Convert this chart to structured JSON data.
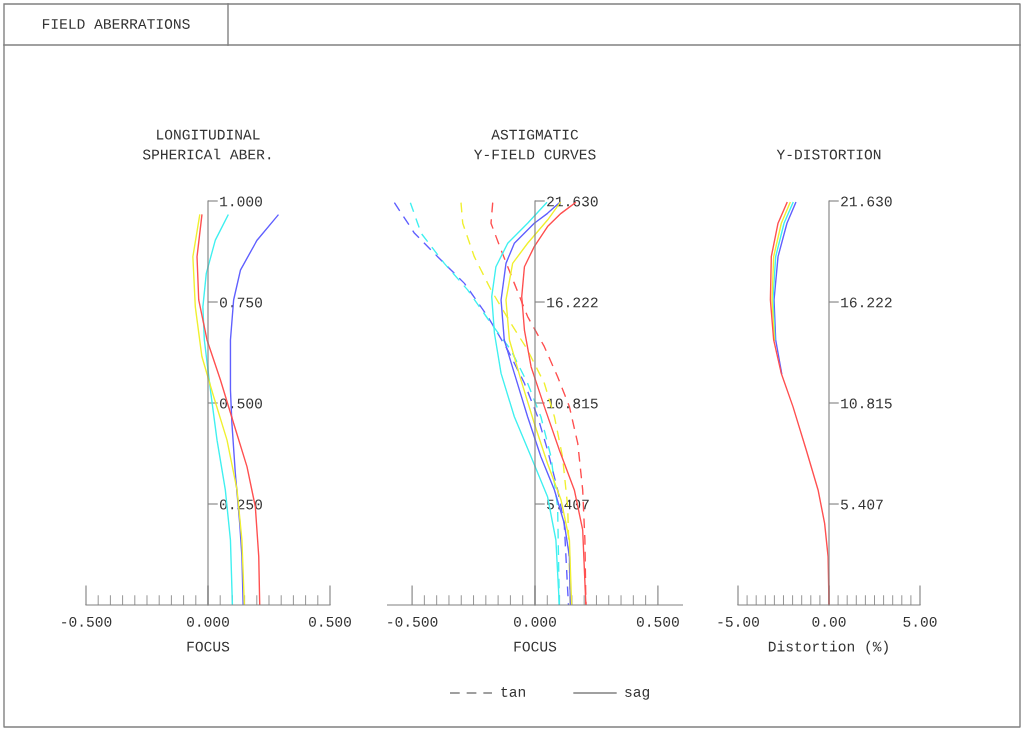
{
  "chart_data": [
    {
      "type": "line",
      "title": "LONGITUDINAL\nSPHERICAl ABER.",
      "xlabel": "FOCUS",
      "annotations": [
        "FIELD ABERRATIONS"
      ],
      "xlim": [
        -0.5,
        0.5
      ],
      "xticks": [
        {
          "value": -0.5,
          "label": "-0.500"
        },
        {
          "value": -0.45,
          "label": null
        },
        {
          "value": -0.4,
          "label": null
        },
        {
          "value": -0.35,
          "label": null
        },
        {
          "value": -0.3,
          "label": null
        },
        {
          "value": -0.25,
          "label": null
        },
        {
          "value": -0.2,
          "label": null
        },
        {
          "value": -0.15,
          "label": null
        },
        {
          "value": -0.1,
          "label": null
        },
        {
          "value": -0.05,
          "label": null
        },
        {
          "value": 0,
          "label": "0.000"
        },
        {
          "value": 0.05,
          "label": null
        },
        {
          "value": 0.1,
          "label": null
        },
        {
          "value": 0.15,
          "label": null
        },
        {
          "value": 0.2,
          "label": null
        },
        {
          "value": 0.25,
          "label": null
        },
        {
          "value": 0.3,
          "label": null
        },
        {
          "value": 0.35,
          "label": null
        },
        {
          "value": 0.4,
          "label": null
        },
        {
          "value": 0.45,
          "label": null
        },
        {
          "value": 0.5,
          "label": "0.500"
        }
      ],
      "ylim": [
        0,
        1
      ],
      "yticks": [
        {
          "value": 0.25,
          "label": "0.250"
        },
        {
          "value": 0.5,
          "label": "0.500"
        },
        {
          "value": 0.75,
          "label": "0.750"
        },
        {
          "value": 1.0,
          "label": "1.000"
        }
      ],
      "grid": false,
      "marker": "none",
      "series": [
        {
          "color": "#6060ff",
          "line_style": "solid",
          "x": [
            0.287,
            0.201,
            0.133,
            0.105,
            0.092,
            0.092,
            0.098,
            0.112,
            0.13,
            0.139,
            0.144
          ],
          "values": [
            0.965,
            0.903,
            0.829,
            0.755,
            0.656,
            0.532,
            0.45,
            0.326,
            0.202,
            0.12,
            0
          ]
        },
        {
          "color": "#40f0f0",
          "line_style": "solid",
          "x": [
            0.082,
            0.03,
            -0.007,
            -0.021,
            -0.015,
            0.01,
            0.037,
            0.071,
            0.092,
            0.1
          ],
          "values": [
            0.965,
            0.903,
            0.821,
            0.738,
            0.656,
            0.532,
            0.408,
            0.285,
            0.161,
            0
          ]
        },
        {
          "color": "#f0f030",
          "line_style": "solid",
          "x": [
            -0.034,
            -0.062,
            -0.052,
            -0.025,
            0.023,
            0.078,
            0.119,
            0.139,
            0.149
          ],
          "values": [
            0.965,
            0.862,
            0.738,
            0.615,
            0.516,
            0.408,
            0.285,
            0.161,
            0
          ]
        },
        {
          "color": "#ff5050",
          "line_style": "solid",
          "x": [
            -0.025,
            -0.045,
            -0.038,
            -0.004,
            0.051,
            0.105,
            0.16,
            0.194,
            0.208,
            0.212
          ],
          "values": [
            0.965,
            0.862,
            0.755,
            0.656,
            0.557,
            0.45,
            0.342,
            0.243,
            0.12,
            0
          ]
        }
      ]
    },
    {
      "type": "line",
      "title": "ASTIGMATIC\nY-FIELD CURVES",
      "xlabel": "FOCUS",
      "annotations": [
        "tan",
        "sag"
      ],
      "xlim": [
        -0.6,
        0.6
      ],
      "xticks": [
        {
          "value": -0.5,
          "label": "-0.500"
        },
        {
          "value": -0.45,
          "label": null
        },
        {
          "value": -0.4,
          "label": null
        },
        {
          "value": -0.35,
          "label": null
        },
        {
          "value": -0.3,
          "label": null
        },
        {
          "value": -0.25,
          "label": null
        },
        {
          "value": -0.2,
          "label": null
        },
        {
          "value": -0.15,
          "label": null
        },
        {
          "value": -0.1,
          "label": null
        },
        {
          "value": -0.05,
          "label": null
        },
        {
          "value": 0,
          "label": "0.000"
        },
        {
          "value": 0.05,
          "label": null
        },
        {
          "value": 0.1,
          "label": null
        },
        {
          "value": 0.15,
          "label": null
        },
        {
          "value": 0.2,
          "label": null
        },
        {
          "value": 0.25,
          "label": null
        },
        {
          "value": 0.3,
          "label": null
        },
        {
          "value": 0.35,
          "label": null
        },
        {
          "value": 0.4,
          "label": null
        },
        {
          "value": 0.45,
          "label": null
        },
        {
          "value": 0.5,
          "label": "0.500"
        }
      ],
      "ylim": [
        0,
        21.63
      ],
      "yticks": [
        {
          "value": 5.407,
          "label": "5.407"
        },
        {
          "value": 10.815,
          "label": "10.815"
        },
        {
          "value": 16.222,
          "label": "16.222"
        },
        {
          "value": 21.63,
          "label": "21.630"
        }
      ],
      "grid": false,
      "marker": "none",
      "series": [
        {
          "color": "#6060ff",
          "line_style": "dashed",
          "x": [
            -0.572,
            -0.49,
            -0.396,
            -0.287,
            -0.192,
            -0.111,
            -0.043,
            0.011,
            0.051,
            0.092,
            0.119,
            0.136
          ],
          "values": [
            21.54,
            19.9,
            18.65,
            17.22,
            15.44,
            13.65,
            11.87,
            10.08,
            8.3,
            6.16,
            4.37,
            0
          ]
        },
        {
          "color": "#40f0f0",
          "line_style": "dashed",
          "x": [
            -0.507,
            -0.463,
            -0.369,
            -0.274,
            -0.179,
            -0.098,
            -0.03,
            0.024,
            0.065,
            0.092,
            0.099
          ],
          "values": [
            21.54,
            19.9,
            18.29,
            16.87,
            15.08,
            13.65,
            11.87,
            10.08,
            7.94,
            5.26,
            0
          ]
        },
        {
          "color": "#f0f030",
          "line_style": "dashed",
          "x": [
            -0.301,
            -0.294,
            -0.247,
            -0.179,
            -0.098,
            -0.03,
            0.038,
            0.079,
            0.112,
            0.133,
            0.144
          ],
          "values": [
            21.54,
            20.44,
            18.65,
            16.87,
            15.08,
            13.65,
            11.87,
            10.08,
            7.94,
            5.26,
            0
          ]
        },
        {
          "color": "#ff5050",
          "line_style": "dashed",
          "x": [
            -0.172,
            -0.179,
            -0.138,
            -0.084,
            -0.03,
            0.038,
            0.092,
            0.14,
            0.174,
            0.194,
            0.203,
            0.207
          ],
          "values": [
            21.54,
            20.44,
            19.01,
            17.22,
            15.44,
            13.83,
            12.22,
            10.62,
            8.65,
            6.16,
            3.48,
            0
          ]
        },
        {
          "color": "#6060ff",
          "line_style": "solid",
          "x": [
            0.099,
            0.051,
            -0.003,
            -0.084,
            -0.118,
            -0.138,
            -0.125,
            -0.084,
            -0.03,
            0.024,
            0.079,
            0.119,
            0.14,
            0.144
          ],
          "values": [
            21.54,
            20.97,
            20.44,
            19.37,
            18.29,
            16.33,
            14.19,
            12.4,
            10.08,
            7.94,
            6.16,
            4.37,
            2.59,
            0
          ]
        },
        {
          "color": "#40f0f0",
          "line_style": "solid",
          "x": [
            0.047,
            -0.03,
            -0.111,
            -0.159,
            -0.176,
            -0.165,
            -0.138,
            -0.084,
            -0.016,
            0.051,
            0.085,
            0.099
          ],
          "values": [
            21.54,
            20.44,
            19.37,
            18.11,
            16.51,
            14.55,
            12.4,
            10.08,
            7.94,
            5.8,
            3.48,
            0
          ]
        },
        {
          "color": "#f0f030",
          "line_style": "solid",
          "x": [
            0.102,
            0.051,
            -0.03,
            -0.091,
            -0.118,
            -0.104,
            -0.057,
            -0.003,
            0.051,
            0.106,
            0.14,
            0.149
          ],
          "values": [
            21.54,
            20.61,
            19.37,
            18.29,
            16.33,
            14.19,
            12.04,
            9.73,
            7.58,
            5.62,
            3.48,
            0
          ]
        },
        {
          "color": "#ff5050",
          "line_style": "solid",
          "x": [
            0.164,
            0.106,
            0.051,
            -0.003,
            -0.043,
            -0.054,
            -0.043,
            -0.016,
            0.038,
            0.099,
            0.16,
            0.194,
            0.207
          ],
          "values": [
            21.54,
            20.97,
            20.26,
            19.19,
            18.11,
            16.51,
            14.72,
            12.76,
            10.62,
            8.3,
            6.16,
            4.02,
            0
          ]
        }
      ]
    },
    {
      "type": "line",
      "title": "Y-DISTORTION",
      "xlabel": "Distortion (%)",
      "xlim": [
        -5,
        5
      ],
      "xticks": [
        {
          "value": -5,
          "label": "-5.00"
        },
        {
          "value": -4.5,
          "label": null
        },
        {
          "value": -4,
          "label": null
        },
        {
          "value": -3.5,
          "label": null
        },
        {
          "value": -3,
          "label": null
        },
        {
          "value": -2.5,
          "label": null
        },
        {
          "value": -2,
          "label": null
        },
        {
          "value": -1.5,
          "label": null
        },
        {
          "value": -1,
          "label": null
        },
        {
          "value": -0.5,
          "label": null
        },
        {
          "value": 0,
          "label": "0.00"
        },
        {
          "value": 0.5,
          "label": null
        },
        {
          "value": 1,
          "label": null
        },
        {
          "value": 1.5,
          "label": null
        },
        {
          "value": 2,
          "label": null
        },
        {
          "value": 2.5,
          "label": null
        },
        {
          "value": 3,
          "label": null
        },
        {
          "value": 3.5,
          "label": null
        },
        {
          "value": 4,
          "label": null
        },
        {
          "value": 4.5,
          "label": null
        },
        {
          "value": 5,
          "label": "5.00"
        }
      ],
      "ylim": [
        0,
        21.63
      ],
      "yticks": [
        {
          "value": 5.407,
          "label": "5.407"
        },
        {
          "value": 10.815,
          "label": "10.815"
        },
        {
          "value": 16.222,
          "label": "16.222"
        },
        {
          "value": 21.63,
          "label": "21.630"
        }
      ],
      "grid": false,
      "marker": "none",
      "series": [
        {
          "color": "#6060ff",
          "line_style": "solid",
          "x": [
            -1.83,
            -2.31,
            -2.8,
            -3.02,
            -2.93,
            -2.6
          ],
          "values": [
            21.54,
            20.44,
            18.65,
            16.33,
            14.19,
            12.4
          ]
        },
        {
          "color": "#40f0f0",
          "line_style": "solid",
          "x": [
            -1.98,
            -2.47,
            -2.93,
            -3.08,
            -2.97
          ],
          "values": [
            21.54,
            20.44,
            18.65,
            16.33,
            14.19
          ]
        },
        {
          "color": "#f0f030",
          "line_style": "solid",
          "x": [
            -2.14,
            -2.62,
            -3.04,
            -3.13,
            -3.0
          ],
          "values": [
            21.54,
            20.44,
            18.65,
            16.33,
            14.19
          ]
        },
        {
          "color": "#ff5050",
          "line_style": "solid",
          "x": [
            -2.31,
            -2.8,
            -3.17,
            -3.22,
            -3.04,
            -2.62,
            -1.98,
            -1.25,
            -0.6,
            -0.24,
            -0.05,
            0
          ],
          "values": [
            21.54,
            20.44,
            18.65,
            16.33,
            14.19,
            12.4,
            10.62,
            8.3,
            6.16,
            4.37,
            2.59,
            0
          ]
        }
      ]
    }
  ]
}
